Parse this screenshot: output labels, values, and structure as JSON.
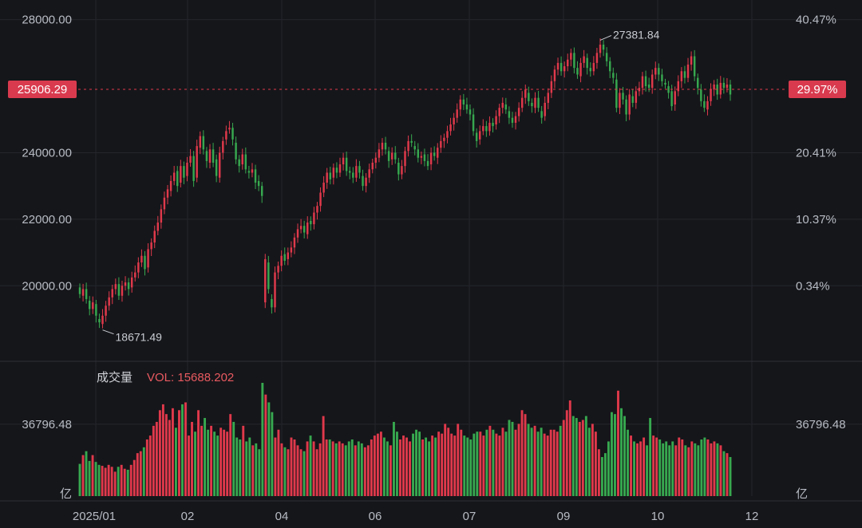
{
  "chart_data": {
    "type": "candlestick",
    "x_axis": {
      "ticks": [
        "2025/01",
        "02",
        "04",
        "06",
        "07",
        "09",
        "10",
        "12"
      ]
    },
    "price_axis": {
      "range": [
        17800,
        28400
      ],
      "ticks": [
        "28000.00",
        "24000.00",
        "22000.00",
        "20000.00"
      ],
      "tick_values": [
        28000,
        24000,
        22000,
        20000
      ],
      "percent_ticks": [
        "40.47%",
        "20.41%",
        "10.37%",
        "0.34%"
      ],
      "percent_tick_values": [
        28000,
        24000,
        22000,
        20000
      ]
    },
    "current": {
      "price_label": "25906.29",
      "percent_label": "29.97%",
      "value": 25906.29
    },
    "annotations": {
      "high": {
        "label": "27381.84",
        "value": 27381.84
      },
      "low": {
        "label": "18671.49",
        "value": 18671.49
      }
    },
    "volume": {
      "title": "成交量",
      "vol_label": "VOL: 15688.202",
      "tick_label": "36796.48",
      "tick_value": 36796.48,
      "unit_label": "亿",
      "max_value": 58000
    },
    "series_open_close": [
      [
        19950,
        19750
      ],
      [
        19700,
        19900
      ],
      [
        19900,
        19600
      ],
      [
        19550,
        19300
      ],
      [
        19300,
        19500
      ],
      [
        19450,
        19100
      ],
      [
        19000,
        18900
      ],
      [
        18850,
        19100
      ],
      [
        19100,
        19400
      ],
      [
        19400,
        19650
      ],
      [
        19650,
        19900
      ],
      [
        19900,
        20050
      ],
      [
        20050,
        19700
      ],
      [
        19700,
        20000
      ],
      [
        20000,
        20100
      ],
      [
        20100,
        19900
      ],
      [
        19950,
        20250
      ],
      [
        20250,
        20400
      ],
      [
        20400,
        20700
      ],
      [
        20700,
        20900
      ],
      [
        20900,
        20500
      ],
      [
        20550,
        21100
      ],
      [
        21100,
        21300
      ],
      [
        21300,
        21650
      ],
      [
        21650,
        21900
      ],
      [
        21900,
        22300
      ],
      [
        22300,
        22650
      ],
      [
        22650,
        22900
      ],
      [
        22850,
        23150
      ],
      [
        23150,
        23400
      ],
      [
        23450,
        23000
      ],
      [
        23100,
        23600
      ],
      [
        23600,
        23250
      ],
      [
        23300,
        23700
      ],
      [
        23700,
        23900
      ],
      [
        23900,
        23150
      ],
      [
        23250,
        24200
      ],
      [
        24150,
        24500
      ],
      [
        24500,
        24100
      ],
      [
        24050,
        23750
      ],
      [
        23700,
        24100
      ],
      [
        24100,
        23700
      ],
      [
        23800,
        23300
      ],
      [
        23250,
        24000
      ],
      [
        24000,
        24350
      ],
      [
        24400,
        24650
      ],
      [
        24700,
        24750
      ],
      [
        24750,
        24400
      ],
      [
        24300,
        23800
      ],
      [
        23800,
        23600
      ],
      [
        23650,
        23950
      ],
      [
        23950,
        23500
      ],
      [
        23450,
        23400
      ],
      [
        23400,
        23500
      ],
      [
        23500,
        23100
      ],
      [
        23150,
        23000
      ],
      [
        23000,
        22700
      ],
      [
        19500,
        20800
      ],
      [
        20700,
        19900
      ],
      [
        19600,
        19350
      ],
      [
        19350,
        20400
      ],
      [
        20400,
        20600
      ],
      [
        20600,
        20900
      ],
      [
        20950,
        20750
      ],
      [
        20800,
        21000
      ],
      [
        21000,
        21150
      ],
      [
        21150,
        21450
      ],
      [
        21450,
        21700
      ],
      [
        21700,
        21800
      ],
      [
        21800,
        21600
      ],
      [
        21550,
        21900
      ],
      [
        21950,
        21850
      ],
      [
        21850,
        22200
      ],
      [
        22200,
        22400
      ],
      [
        22400,
        22800
      ],
      [
        22800,
        23100
      ],
      [
        23100,
        23400
      ],
      [
        23400,
        23200
      ],
      [
        23250,
        23550
      ],
      [
        23550,
        23400
      ],
      [
        23400,
        23650
      ],
      [
        23650,
        23850
      ],
      [
        23850,
        23450
      ],
      [
        23450,
        23400
      ],
      [
        23400,
        23250
      ],
      [
        23250,
        23600
      ],
      [
        23600,
        23400
      ],
      [
        23300,
        23000
      ],
      [
        23000,
        23250
      ],
      [
        23250,
        23500
      ],
      [
        23500,
        23700
      ],
      [
        23700,
        23850
      ],
      [
        23850,
        24100
      ],
      [
        24100,
        24300
      ],
      [
        24300,
        24100
      ],
      [
        24050,
        23750
      ],
      [
        23800,
        24000
      ],
      [
        24000,
        23800
      ],
      [
        23700,
        23350
      ],
      [
        23350,
        23600
      ],
      [
        23600,
        24050
      ],
      [
        24050,
        24350
      ],
      [
        24350,
        24300
      ],
      [
        24200,
        24100
      ],
      [
        24100,
        23850
      ],
      [
        23850,
        23900
      ],
      [
        23950,
        23750
      ],
      [
        23750,
        23600
      ],
      [
        23650,
        24000
      ],
      [
        24000,
        23900
      ],
      [
        23850,
        24150
      ],
      [
        24150,
        24350
      ],
      [
        24350,
        24450
      ],
      [
        24450,
        24650
      ],
      [
        24650,
        24850
      ],
      [
        24850,
        25050
      ],
      [
        25050,
        25300
      ],
      [
        25300,
        25600
      ],
      [
        25600,
        25450
      ],
      [
        25450,
        25300
      ],
      [
        25300,
        25150
      ],
      [
        25150,
        24650
      ],
      [
        24600,
        24350
      ],
      [
        24400,
        24650
      ],
      [
        24650,
        24800
      ],
      [
        24800,
        24650
      ],
      [
        24650,
        24900
      ],
      [
        24900,
        24800
      ],
      [
        24850,
        25100
      ],
      [
        25100,
        25350
      ],
      [
        25350,
        25500
      ],
      [
        25450,
        25300
      ],
      [
        25250,
        25050
      ],
      [
        25050,
        24900
      ],
      [
        24900,
        25100
      ],
      [
        25100,
        25350
      ],
      [
        25350,
        25650
      ],
      [
        25650,
        25900
      ],
      [
        25800,
        25550
      ],
      [
        25500,
        25400
      ],
      [
        25350,
        25650
      ],
      [
        25650,
        25350
      ],
      [
        25250,
        25050
      ],
      [
        25100,
        25500
      ],
      [
        25500,
        25800
      ],
      [
        25800,
        26150
      ],
      [
        26150,
        26500
      ],
      [
        26500,
        26700
      ],
      [
        26700,
        26450
      ],
      [
        26450,
        26600
      ],
      [
        26600,
        26800
      ],
      [
        26800,
        27000
      ],
      [
        27000,
        26550
      ],
      [
        26550,
        26350
      ],
      [
        26300,
        26700
      ],
      [
        26700,
        26900
      ],
      [
        26850,
        26550
      ],
      [
        26550,
        26450
      ],
      [
        26450,
        26700
      ],
      [
        26700,
        27000
      ],
      [
        27000,
        27250
      ],
      [
        27250,
        27100
      ],
      [
        27000,
        26750
      ],
      [
        26750,
        26450
      ],
      [
        26400,
        26250
      ],
      [
        26200,
        25350
      ],
      [
        25350,
        25800
      ],
      [
        25800,
        25600
      ],
      [
        25600,
        25150
      ],
      [
        25150,
        25750
      ],
      [
        25700,
        25500
      ],
      [
        25500,
        25850
      ],
      [
        25850,
        25950
      ],
      [
        25950,
        26300
      ],
      [
        26300,
        26000
      ],
      [
        26050,
        25950
      ],
      [
        25950,
        26350
      ],
      [
        26350,
        26550
      ],
      [
        26550,
        26350
      ],
      [
        26350,
        26150
      ],
      [
        26100,
        26050
      ],
      [
        26000,
        25800
      ],
      [
        25850,
        25400
      ],
      [
        25450,
        25850
      ],
      [
        25850,
        26150
      ],
      [
        26150,
        26450
      ],
      [
        26450,
        26250
      ],
      [
        26250,
        26650
      ],
      [
        26650,
        26900
      ],
      [
        26900,
        26300
      ],
      [
        26250,
        25950
      ],
      [
        25900,
        25550
      ],
      [
        25550,
        25350
      ],
      [
        25300,
        25550
      ],
      [
        25550,
        25900
      ],
      [
        25900,
        26050
      ],
      [
        26050,
        25750
      ],
      [
        25750,
        26100
      ],
      [
        26100,
        25950
      ],
      [
        25950,
        26050
      ],
      [
        26050,
        25750
      ]
    ],
    "volumes": [
      16500,
      21000,
      23000,
      18000,
      21000,
      17500,
      16000,
      15500,
      14500,
      16000,
      15000,
      12500,
      15000,
      16000,
      14000,
      13500,
      16000,
      18500,
      22000,
      23000,
      25000,
      29000,
      31000,
      36000,
      38000,
      44000,
      47000,
      42000,
      39000,
      45000,
      35000,
      44000,
      47000,
      48000,
      31000,
      38000,
      33000,
      44000,
      36000,
      40000,
      34000,
      36000,
      33000,
      31000,
      35000,
      34000,
      33000,
      42000,
      38000,
      30000,
      29000,
      36000,
      28000,
      30000,
      26000,
      27000,
      24000,
      58000,
      52000,
      48000,
      43000,
      30000,
      34000,
      27000,
      25000,
      24000,
      30000,
      29000,
      26000,
      24000,
      23000,
      28000,
      31000,
      28000,
      24000,
      27000,
      41000,
      29000,
      29000,
      28000,
      27000,
      28000,
      27000,
      26000,
      28000,
      29000,
      26000,
      28000,
      27000,
      25000,
      26000,
      29000,
      31000,
      32000,
      33000,
      30000,
      28000,
      26000,
      38000,
      33000,
      29000,
      31000,
      30000,
      28000,
      32000,
      34000,
      33000,
      29000,
      30000,
      28000,
      31000,
      30000,
      33000,
      32000,
      37000,
      35000,
      32000,
      31000,
      37000,
      34000,
      31000,
      30000,
      29000,
      32000,
      33000,
      33000,
      31000,
      34000,
      36000,
      34000,
      32000,
      31000,
      35000,
      33000,
      39000,
      38000,
      34000,
      37000,
      44000,
      42000,
      37000,
      35000,
      36000,
      33000,
      35000,
      32000,
      31000,
      34000,
      34000,
      33000,
      36000,
      39000,
      44000,
      49000,
      41000,
      40000,
      38000,
      39000,
      41000,
      35000,
      37000,
      33000,
      24000,
      20000,
      22000,
      28000,
      43000,
      42000,
      54000,
      45000,
      41000,
      34000,
      31000,
      28000,
      27000,
      28000,
      30000,
      26000,
      40000,
      31000,
      30000,
      29000,
      27000,
      28000,
      26000,
      28000,
      26000,
      30000,
      29000,
      26000,
      25000,
      28000,
      27000,
      26000,
      29000,
      30000,
      29000,
      27000,
      28000,
      27000,
      26000,
      23000,
      22000,
      20000
    ]
  }
}
